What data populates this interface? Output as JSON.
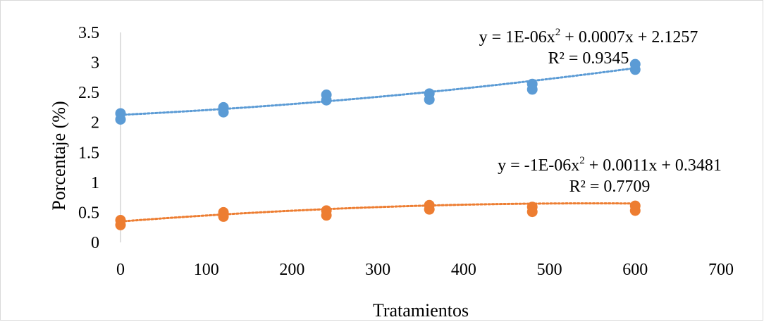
{
  "chart_data": {
    "type": "scatter",
    "xlabel": "Tratamientos",
    "ylabel": "Porcentaje (%)",
    "xlim": [
      0,
      700
    ],
    "ylim": [
      0,
      3.5
    ],
    "x_ticks": [
      "0",
      "100",
      "200",
      "300",
      "400",
      "500",
      "600",
      "700"
    ],
    "y_ticks": [
      "0",
      "0.5",
      "1",
      "1.5",
      "2",
      "2.5",
      "3",
      "3.5"
    ],
    "grid": false,
    "legend": "none",
    "series": [
      {
        "color": "#5b9bd5",
        "points": [
          [
            0,
            2.05
          ],
          [
            0,
            2.15
          ],
          [
            120,
            2.17
          ],
          [
            120,
            2.25
          ],
          [
            240,
            2.37
          ],
          [
            240,
            2.46
          ],
          [
            360,
            2.38
          ],
          [
            360,
            2.48
          ],
          [
            480,
            2.55
          ],
          [
            480,
            2.64
          ],
          [
            600,
            2.88
          ],
          [
            600,
            2.97
          ]
        ],
        "trendline": {
          "type": "polynomial",
          "coefficients": [
            1e-06,
            0.0007,
            2.1257
          ],
          "style": "dotted",
          "equation": {
            "prefix": "y = 1E-06x",
            "sup": "2",
            "suffix": " + 0.0007x + 2.1257"
          },
          "r2": "R² = 0.9345"
        }
      },
      {
        "color": "#ed7d31",
        "points": [
          [
            0,
            0.29
          ],
          [
            0,
            0.37
          ],
          [
            120,
            0.43
          ],
          [
            120,
            0.5
          ],
          [
            240,
            0.45
          ],
          [
            240,
            0.53
          ],
          [
            360,
            0.55
          ],
          [
            360,
            0.62
          ],
          [
            480,
            0.51
          ],
          [
            480,
            0.59
          ],
          [
            600,
            0.53
          ],
          [
            600,
            0.61
          ]
        ],
        "trendline": {
          "type": "polynomial",
          "coefficients": [
            -1e-06,
            0.0011,
            0.3481
          ],
          "style": "dotted",
          "equation": {
            "prefix": "y = -1E-06x",
            "sup": "2",
            "suffix": " + 0.0011x + 0.3481"
          },
          "r2": "R² = 0.7709"
        }
      }
    ]
  }
}
